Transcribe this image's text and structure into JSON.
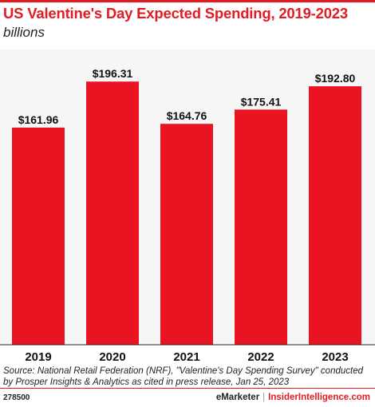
{
  "title": "US Valentine's Day Expected Spending, 2019-2023",
  "subtitle": "billions",
  "source": "Source: National Retail Federation (NRF), \"Valentine's Day Spending Survey\" conducted by Prosper Insights & Analytics as cited in press release, Jan 25, 2023",
  "chart_id": "278500",
  "brand": {
    "emarketer": "eMarketer",
    "separator": "|",
    "insider": "InsiderIntelligence.com"
  },
  "colors": {
    "accent": "#e31b23",
    "bar": "#ea1321",
    "plot_bg": "#f6f6f6"
  },
  "chart_data": {
    "type": "bar",
    "title": "US Valentine's Day Expected Spending, 2019-2023",
    "subtitle": "billions",
    "categories": [
      "2019",
      "2020",
      "2021",
      "2022",
      "2023"
    ],
    "values": [
      161.96,
      196.31,
      164.76,
      175.41,
      192.8
    ],
    "data_labels": [
      "$161.96",
      "$196.31",
      "$164.76",
      "$175.41",
      "$192.80"
    ],
    "ylim": [
      0,
      200
    ],
    "grid": false,
    "legend": "none"
  }
}
